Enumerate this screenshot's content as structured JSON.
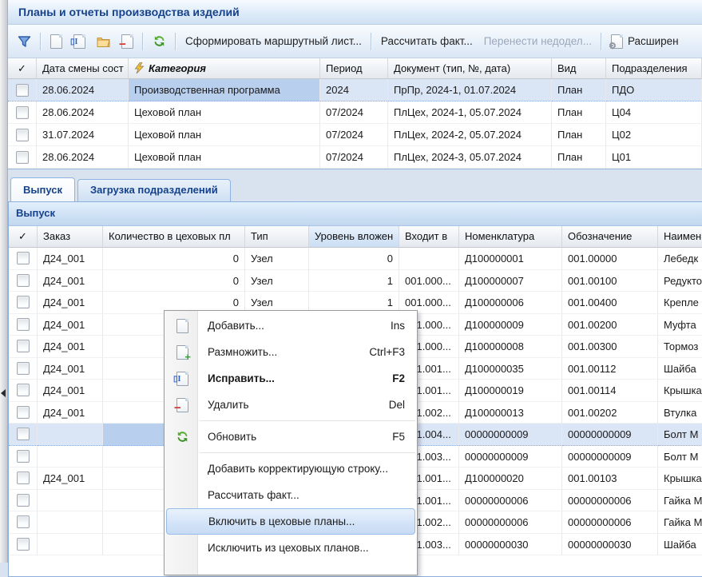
{
  "window": {
    "title": "Планы и отчеты производства изделий"
  },
  "toolbar": {
    "make_route_list": "Сформировать маршрутный лист...",
    "calc_fact": "Рассчитать факт...",
    "move_unfinished": "Перенести недодел...",
    "extended": "Расширен"
  },
  "plans_table": {
    "columns": {
      "check": "✓",
      "date": "Дата смены сост",
      "category": "Категория",
      "period": "Период",
      "document": "Документ (тип, №, дата)",
      "kind": "Вид",
      "division": "Подразделения"
    },
    "rows": [
      {
        "date": "28.06.2024",
        "category": "Производственная программа",
        "period": "2024",
        "document": "ПрПр, 2024-1, 01.07.2024",
        "kind": "План",
        "division": "ПДО",
        "selected": true
      },
      {
        "date": "28.06.2024",
        "category": "Цеховой план",
        "period": "07/2024",
        "document": "ПлЦех, 2024-1, 05.07.2024",
        "kind": "План",
        "division": "Ц04",
        "selected": false
      },
      {
        "date": "31.07.2024",
        "category": "Цеховой план",
        "period": "07/2024",
        "document": "ПлЦех, 2024-2, 05.07.2024",
        "kind": "План",
        "division": "Ц02",
        "selected": false
      },
      {
        "date": "28.06.2024",
        "category": "Цеховой план",
        "period": "07/2024",
        "document": "ПлЦех, 2024-3, 05.07.2024",
        "kind": "План",
        "division": "Ц01",
        "selected": false
      }
    ]
  },
  "tabs": [
    {
      "label": "Выпуск",
      "active": true
    },
    {
      "label": "Загрузка подразделений",
      "active": false
    }
  ],
  "output_panel": {
    "title": "Выпуск"
  },
  "output_table": {
    "columns": {
      "check": "✓",
      "order": "Заказ",
      "qty": "Количество в цеховых пл",
      "type": "Тип",
      "level": "Уровень вложен",
      "parent": "Входит в",
      "nomenclature": "Номенклатура",
      "designation": "Обозначение",
      "name": "Наимен"
    },
    "rows": [
      {
        "order": "Д24_001",
        "qty": "0",
        "type": "Узел",
        "level": "0",
        "parent": "",
        "nomenclature": "Д100000001",
        "designation": "001.00000",
        "name": "Лебедк",
        "selected": false
      },
      {
        "order": "Д24_001",
        "qty": "0",
        "type": "Узел",
        "level": "1",
        "parent": "001.000...",
        "nomenclature": "Д100000007",
        "designation": "001.00100",
        "name": "Редукто",
        "selected": false
      },
      {
        "order": "Д24_001",
        "qty": "0",
        "type": "Узел",
        "level": "1",
        "parent": "001.000...",
        "nomenclature": "Д100000006",
        "designation": "001.00400",
        "name": "Крепле",
        "selected": false
      },
      {
        "order": "Д24_001",
        "qty": "",
        "type": "",
        "level": "",
        "parent": "001.000...",
        "nomenclature": "Д100000009",
        "designation": "001.00200",
        "name": "Муфта",
        "selected": false
      },
      {
        "order": "Д24_001",
        "qty": "",
        "type": "",
        "level": "",
        "parent": "001.000...",
        "nomenclature": "Д100000008",
        "designation": "001.00300",
        "name": "Тормоз",
        "selected": false
      },
      {
        "order": "Д24_001",
        "qty": "",
        "type": "",
        "level": "",
        "parent": "001.001...",
        "nomenclature": "Д100000035",
        "designation": "001.00112",
        "name": "Шайба",
        "selected": false
      },
      {
        "order": "Д24_001",
        "qty": "",
        "type": "",
        "level": "",
        "parent": "001.001...",
        "nomenclature": "Д100000019",
        "designation": "001.00114",
        "name": "Крышка",
        "selected": false
      },
      {
        "order": "Д24_001",
        "qty": "",
        "type": "",
        "level": "",
        "parent": "001.002...",
        "nomenclature": "Д100000013",
        "designation": "001.00202",
        "name": "Втулка",
        "selected": false
      },
      {
        "order": "",
        "qty": "",
        "type": "",
        "level": "",
        "parent": "001.004...",
        "nomenclature": "00000000009",
        "designation": "00000000009",
        "name": "Болт М",
        "selected": true
      },
      {
        "order": "",
        "qty": "",
        "type": "",
        "level": "",
        "parent": "001.003...",
        "nomenclature": "00000000009",
        "designation": "00000000009",
        "name": "Болт М",
        "selected": false
      },
      {
        "order": "Д24_001",
        "qty": "",
        "type": "",
        "level": "",
        "parent": "001.001...",
        "nomenclature": "Д100000020",
        "designation": "001.00103",
        "name": "Крышка",
        "selected": false
      },
      {
        "order": "",
        "qty": "",
        "type": "",
        "level": "",
        "parent": "001.001...",
        "nomenclature": "00000000006",
        "designation": "00000000006",
        "name": "Гайка М",
        "selected": false
      },
      {
        "order": "",
        "qty": "",
        "type": "",
        "level": "",
        "parent": "001.002...",
        "nomenclature": "00000000006",
        "designation": "00000000006",
        "name": "Гайка М",
        "selected": false
      },
      {
        "order": "",
        "qty": "",
        "type": "",
        "level": "",
        "parent": "001.003...",
        "nomenclature": "00000000030",
        "designation": "00000000030",
        "name": "Шайба",
        "selected": false
      }
    ]
  },
  "context_menu": {
    "items": [
      {
        "label": "Добавить...",
        "shortcut": "Ins",
        "icon": "page-new-icon",
        "bold": false,
        "highlighted": false
      },
      {
        "label": "Размножить...",
        "shortcut": "Ctrl+F3",
        "icon": "page-add-icon",
        "bold": false,
        "highlighted": false
      },
      {
        "label": "Исправить...",
        "shortcut": "F2",
        "icon": "page-edit-icon",
        "bold": true,
        "highlighted": false
      },
      {
        "label": "Удалить",
        "shortcut": "Del",
        "icon": "page-delete-icon",
        "bold": false,
        "highlighted": false
      },
      {
        "separator": true
      },
      {
        "label": "Обновить",
        "shortcut": "F5",
        "icon": "refresh-icon",
        "bold": false,
        "highlighted": false
      },
      {
        "separator": true
      },
      {
        "label": "Добавить корректирующую строку...",
        "shortcut": "",
        "icon": "",
        "bold": false,
        "highlighted": false
      },
      {
        "label": "Рассчитать факт...",
        "shortcut": "",
        "icon": "",
        "bold": false,
        "highlighted": false
      },
      {
        "label": "Включить в цеховые планы...",
        "shortcut": "",
        "icon": "",
        "bold": false,
        "highlighted": true
      },
      {
        "label": "Исключить из цеховых планов...",
        "shortcut": "",
        "icon": "",
        "bold": false,
        "highlighted": false
      }
    ]
  },
  "colors": {
    "accent": "#15428b",
    "panel_border": "#8cb0dd",
    "selection_row": "#dae5f6",
    "selection_cell": "#b9cfee",
    "sorted_header": "#d7e6f7",
    "disabled_text": "#9aa8bc"
  }
}
